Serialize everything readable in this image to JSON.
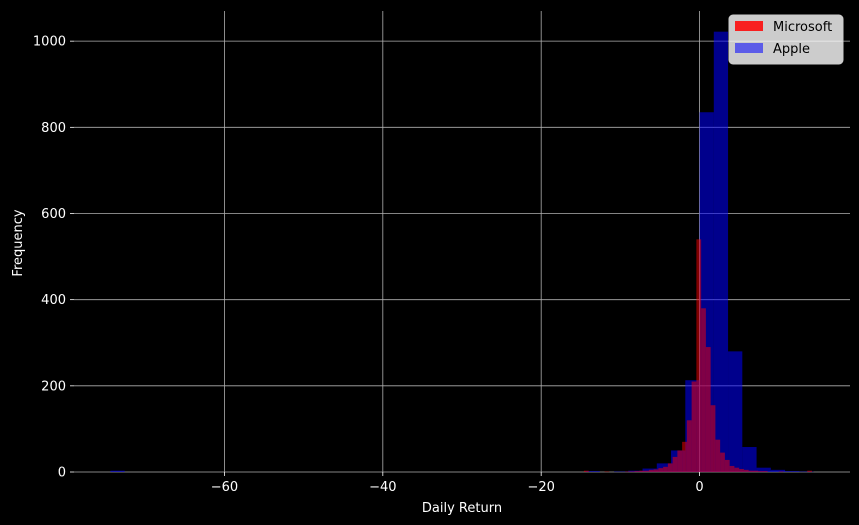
{
  "chart_data": {
    "type": "histogram",
    "xlabel": "Daily Return",
    "ylabel": "Frequency",
    "xlim": [
      -79,
      19
    ],
    "ylim": [
      0,
      1070
    ],
    "xticks": [
      -60,
      -40,
      -20,
      0
    ],
    "xtick_labels": [
      "−60",
      "−40",
      "−20",
      "0"
    ],
    "yticks": [
      0,
      200,
      400,
      600,
      800,
      1000
    ],
    "ytick_labels": [
      "0",
      "200",
      "400",
      "600",
      "800",
      "1000"
    ],
    "grid": true,
    "legend_position": "top-right",
    "background": "#000000",
    "series": [
      {
        "name": "Microsoft",
        "color": "#ff0000",
        "opacity": 0.5,
        "bins": [
          {
            "x0": -14.6,
            "x1": -14.0,
            "count": 3
          },
          {
            "x0": -12.0,
            "x1": -11.4,
            "count": 1
          },
          {
            "x0": -9.4,
            "x1": -8.8,
            "count": 1
          },
          {
            "x0": -8.8,
            "x1": -8.2,
            "count": 1
          },
          {
            "x0": -8.2,
            "x1": -7.6,
            "count": 2
          },
          {
            "x0": -7.6,
            "x1": -7.0,
            "count": 3
          },
          {
            "x0": -7.0,
            "x1": -6.4,
            "count": 3
          },
          {
            "x0": -6.4,
            "x1": -5.8,
            "count": 5
          },
          {
            "x0": -5.8,
            "x1": -5.2,
            "count": 6
          },
          {
            "x0": -5.2,
            "x1": -4.6,
            "count": 9
          },
          {
            "x0": -4.6,
            "x1": -4.0,
            "count": 12
          },
          {
            "x0": -4.0,
            "x1": -3.4,
            "count": 20
          },
          {
            "x0": -3.4,
            "x1": -2.8,
            "count": 35
          },
          {
            "x0": -2.8,
            "x1": -2.2,
            "count": 50
          },
          {
            "x0": -2.2,
            "x1": -1.6,
            "count": 70
          },
          {
            "x0": -1.6,
            "x1": -1.0,
            "count": 120
          },
          {
            "x0": -1.0,
            "x1": -0.4,
            "count": 210
          },
          {
            "x0": -0.4,
            "x1": 0.2,
            "count": 540
          },
          {
            "x0": 0.2,
            "x1": 0.8,
            "count": 380
          },
          {
            "x0": 0.8,
            "x1": 1.4,
            "count": 290
          },
          {
            "x0": 1.4,
            "x1": 2.0,
            "count": 155
          },
          {
            "x0": 2.0,
            "x1": 2.6,
            "count": 75
          },
          {
            "x0": 2.6,
            "x1": 3.2,
            "count": 45
          },
          {
            "x0": 3.2,
            "x1": 3.8,
            "count": 28
          },
          {
            "x0": 3.8,
            "x1": 4.4,
            "count": 14
          },
          {
            "x0": 4.4,
            "x1": 5.0,
            "count": 10
          },
          {
            "x0": 5.0,
            "x1": 5.6,
            "count": 7
          },
          {
            "x0": 5.6,
            "x1": 6.2,
            "count": 5
          },
          {
            "x0": 6.2,
            "x1": 6.8,
            "count": 3
          },
          {
            "x0": 6.8,
            "x1": 7.4,
            "count": 3
          },
          {
            "x0": 7.4,
            "x1": 8.0,
            "count": 2
          },
          {
            "x0": 8.0,
            "x1": 8.6,
            "count": 2
          },
          {
            "x0": 10.0,
            "x1": 10.6,
            "count": 1
          },
          {
            "x0": 13.6,
            "x1": 14.2,
            "count": 3
          }
        ]
      },
      {
        "name": "Apple",
        "color": "#0000ff",
        "opacity": 0.55,
        "bins": [
          {
            "x0": -74.4,
            "x1": -72.6,
            "count": 3
          },
          {
            "x0": -14.4,
            "x1": -12.6,
            "count": 2
          },
          {
            "x0": -10.8,
            "x1": -9.0,
            "count": 1
          },
          {
            "x0": -9.0,
            "x1": -7.2,
            "count": 3
          },
          {
            "x0": -7.2,
            "x1": -5.4,
            "count": 8
          },
          {
            "x0": -5.4,
            "x1": -3.6,
            "count": 20
          },
          {
            "x0": -3.6,
            "x1": -1.8,
            "count": 50
          },
          {
            "x0": -1.8,
            "x1": 0.0,
            "count": 213
          },
          {
            "x0": 0.0,
            "x1": 1.8,
            "count": 835
          },
          {
            "x0": 1.8,
            "x1": 3.6,
            "count": 1022
          },
          {
            "x0": 3.6,
            "x1": 5.4,
            "count": 280
          },
          {
            "x0": 5.4,
            "x1": 7.2,
            "count": 58
          },
          {
            "x0": 7.2,
            "x1": 9.0,
            "count": 10
          },
          {
            "x0": 9.0,
            "x1": 10.8,
            "count": 5
          },
          {
            "x0": 10.8,
            "x1": 12.6,
            "count": 2
          },
          {
            "x0": 12.6,
            "x1": 14.4,
            "count": 1
          }
        ]
      }
    ]
  }
}
